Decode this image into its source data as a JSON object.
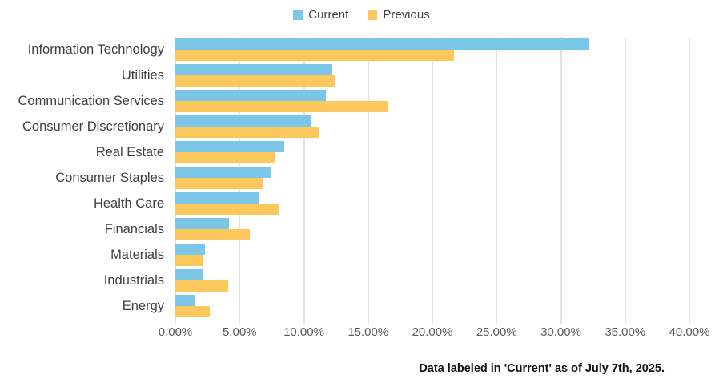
{
  "colors": {
    "current": "#7CC7E8",
    "previous": "#FCC75C",
    "gridline": "#E2E2E2",
    "axis_text": "#595959",
    "label_text": "#3F3F3F"
  },
  "chart_data": {
    "type": "bar",
    "orientation": "horizontal",
    "title": "",
    "xlabel": "",
    "ylabel": "",
    "categories": [
      "Information Technology",
      "Utilities",
      "Communication Services",
      "Consumer Discretionary",
      "Real Estate",
      "Consumer Staples",
      "Health Care",
      "Financials",
      "Materials",
      "Industrials",
      "Energy"
    ],
    "series": [
      {
        "name": "Current",
        "color": "#7CC7E8",
        "values": [
          32.2,
          12.2,
          11.7,
          10.6,
          8.5,
          7.5,
          6.5,
          4.2,
          2.3,
          2.2,
          1.5
        ]
      },
      {
        "name": "Previous",
        "color": "#FCC75C",
        "values": [
          21.7,
          12.4,
          16.5,
          11.2,
          7.7,
          6.8,
          8.1,
          5.8,
          2.1,
          4.1,
          2.7
        ]
      }
    ],
    "value_unit": "%",
    "xlim": [
      0,
      40
    ],
    "x_ticks": [
      "0.00%",
      "5.00%",
      "10.00%",
      "15.00%",
      "20.00%",
      "25.00%",
      "30.00%",
      "35.00%",
      "40.00%"
    ],
    "grid": "vertical",
    "legend_position": "top-center",
    "annotations": [
      "Data labeled in 'Current' as of July 7th, 2025."
    ]
  }
}
